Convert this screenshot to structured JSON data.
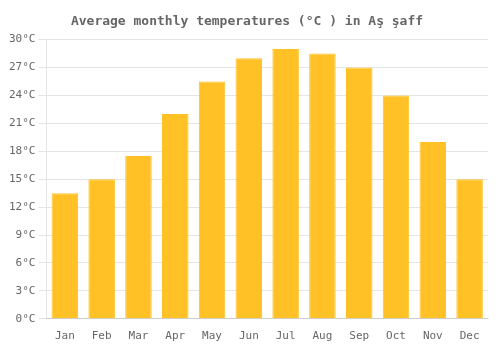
{
  "chart_data": {
    "type": "bar",
    "title": "Average monthly temperatures (°C ) in Aş şaff",
    "categories": [
      "Jan",
      "Feb",
      "Mar",
      "Apr",
      "May",
      "Jun",
      "Jul",
      "Aug",
      "Sep",
      "Oct",
      "Nov",
      "Dec"
    ],
    "values": [
      13.5,
      15.0,
      17.5,
      22.0,
      25.5,
      28.0,
      29.0,
      28.5,
      27.0,
      24.0,
      19.0,
      15.0
    ],
    "color": "#FFC125",
    "ylim": [
      0,
      30
    ],
    "yticks": [
      {
        "value": 0,
        "label": "0°C"
      },
      {
        "value": 3,
        "label": "3°C"
      },
      {
        "value": 6,
        "label": "6°C"
      },
      {
        "value": 9,
        "label": "9°C"
      },
      {
        "value": 12,
        "label": "12°C"
      },
      {
        "value": 15,
        "label": "15°C"
      },
      {
        "value": 18,
        "label": "18°C"
      },
      {
        "value": 21,
        "label": "21°C"
      },
      {
        "value": 24,
        "label": "24°C"
      },
      {
        "value": 27,
        "label": "27°C"
      },
      {
        "value": 30,
        "label": "30°C"
      }
    ],
    "grid": true
  }
}
